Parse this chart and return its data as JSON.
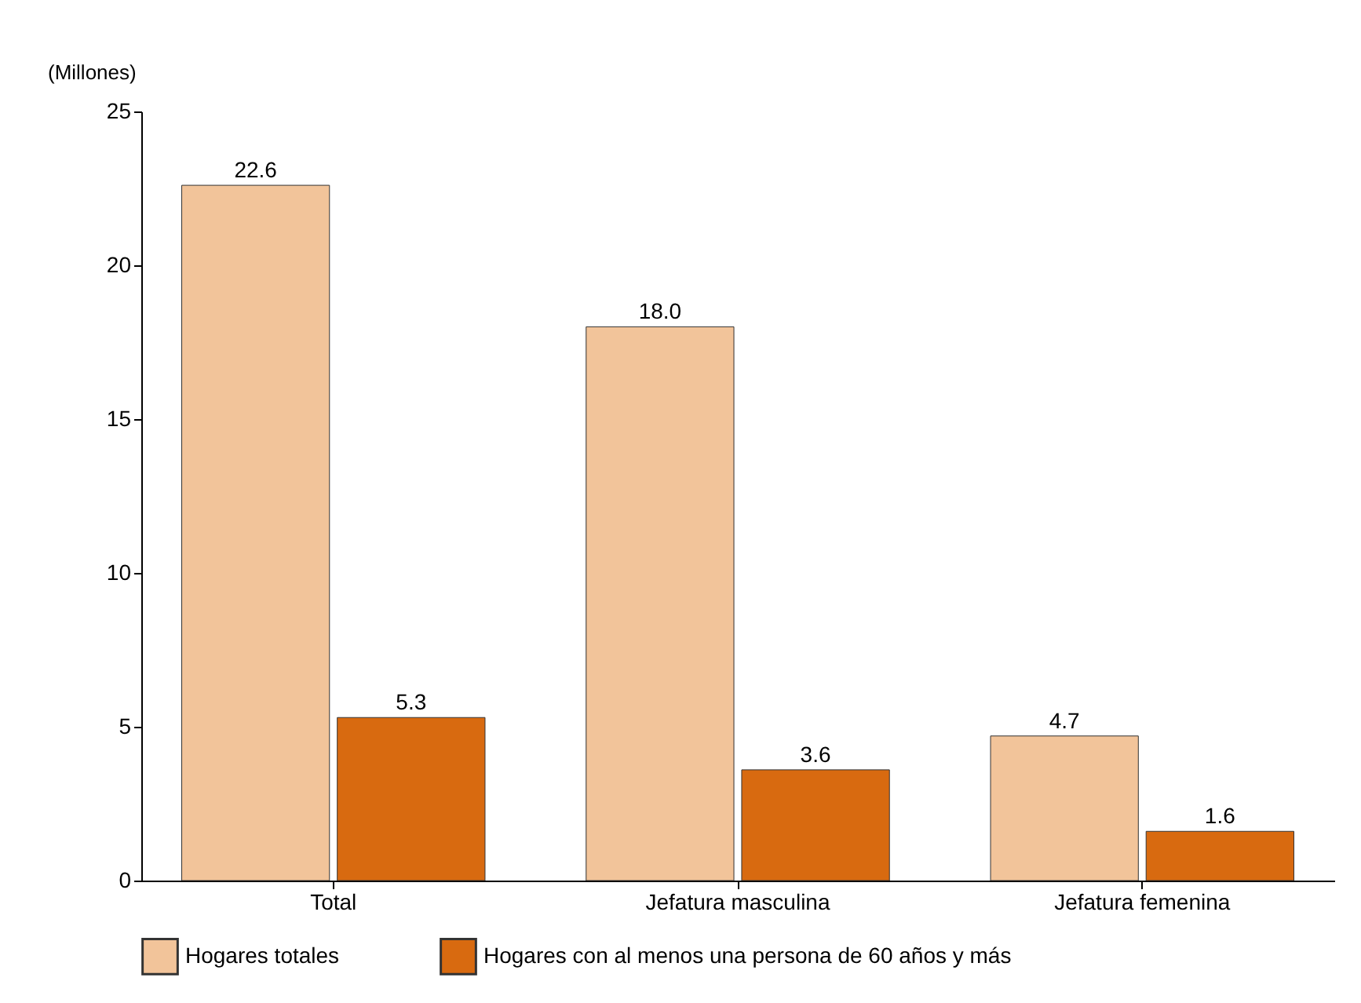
{
  "chart_data": {
    "type": "bar",
    "ylabel": "(Millones)",
    "categories": [
      "Total",
      "Jefatura masculina",
      "Jefatura femenina"
    ],
    "series": [
      {
        "name": "Hogares totales",
        "color": "#f2c49a",
        "values": [
          22.6,
          18.0,
          4.7
        ],
        "value_labels": [
          "22.6",
          "18.0",
          "4.7"
        ]
      },
      {
        "name": "Hogares con al menos una persona de 60 años y más",
        "color": "#d86a10",
        "values": [
          5.3,
          3.6,
          1.6
        ],
        "value_labels": [
          "5.3",
          "3.6",
          "1.6"
        ]
      }
    ],
    "ylim": [
      0,
      25
    ],
    "yticks": [
      0,
      5,
      10,
      15,
      20,
      25
    ],
    "grid": false,
    "legend": "bottom"
  }
}
